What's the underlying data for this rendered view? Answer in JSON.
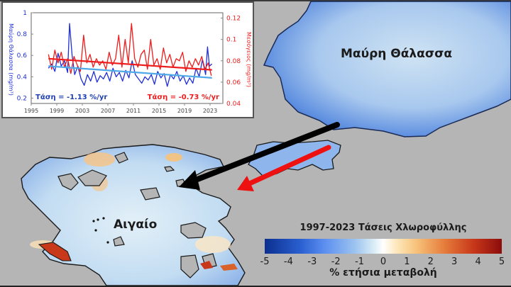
{
  "map": {
    "labels": {
      "black_sea": "Μαύρη Θάλασσα",
      "aegean": "Αιγαίο"
    },
    "arrows": [
      {
        "name": "black-arrow",
        "color": "#000000",
        "from": "Black Sea",
        "to": "Aegean"
      },
      {
        "name": "red-arrow",
        "color": "#ee1111",
        "from": "Sea of Marmara",
        "to": "south-west"
      }
    ],
    "land_color": "#b5b5b5"
  },
  "legend": {
    "title": "1997-2023 Τάσεις Χλωροφύλλης",
    "ticks": [
      "-5",
      "-4",
      "-3",
      "-2",
      "-1",
      "0",
      "1",
      "2",
      "3",
      "4",
      "5"
    ],
    "unit_label": "% ετήσια μεταβολή",
    "colors": [
      "#0b2f8f",
      "#5b8ef0",
      "#ffffff",
      "#f7c27a",
      "#8c0c0c"
    ]
  },
  "chart_data": {
    "type": "line",
    "title": "",
    "xlabel": "",
    "x_ticks": [
      "1995",
      "1999",
      "2003",
      "2007",
      "2011",
      "2015",
      "2019",
      "2023"
    ],
    "xlim": [
      1995,
      2025
    ],
    "left_axis": {
      "label": "Μαύρη Θάλασσα (mg/m³)",
      "ticks": [
        "0.2",
        "0.4",
        "0.6",
        "0.8",
        "1"
      ],
      "ylim": [
        0.15,
        1.0
      ],
      "color": "#1f2fd6"
    },
    "right_axis": {
      "label": "Μεσόγειος (mg/m³)",
      "ticks": [
        "0.04",
        "0.06",
        "0.08",
        "0.1",
        "0.12"
      ],
      "ylim": [
        0.04,
        0.125
      ],
      "color": "#ee1c1c"
    },
    "series": [
      {
        "name": "Μαύρη Θάλασσα",
        "axis": "left",
        "color": "#1f2fd6",
        "x": [
          1997.7,
          1998.2,
          1998.7,
          1999.2,
          1999.7,
          2000.2,
          2000.7,
          2001.0,
          2001.4,
          2001.8,
          2002.3,
          2002.8,
          2003.3,
          2003.8,
          2004.3,
          2004.8,
          2005.3,
          2005.8,
          2006.3,
          2006.8,
          2007.3,
          2007.8,
          2008.3,
          2008.8,
          2009.3,
          2009.8,
          2010.3,
          2010.8,
          2011.3,
          2011.8,
          2012.3,
          2012.8,
          2013.3,
          2013.8,
          2014.3,
          2014.8,
          2015.3,
          2015.8,
          2016.3,
          2016.8,
          2017.3,
          2017.8,
          2018.3,
          2018.8,
          2019.3,
          2019.8,
          2020.3,
          2020.8,
          2021.3,
          2021.8,
          2022.3,
          2022.6,
          2022.9,
          2023.3
        ],
        "values": [
          0.48,
          0.52,
          0.45,
          0.62,
          0.5,
          0.55,
          0.44,
          0.9,
          0.6,
          0.42,
          0.5,
          0.38,
          0.32,
          0.42,
          0.36,
          0.45,
          0.35,
          0.41,
          0.38,
          0.44,
          0.36,
          0.48,
          0.4,
          0.44,
          0.36,
          0.46,
          0.39,
          0.55,
          0.42,
          0.38,
          0.34,
          0.4,
          0.37,
          0.42,
          0.33,
          0.45,
          0.39,
          0.43,
          0.31,
          0.42,
          0.38,
          0.45,
          0.36,
          0.41,
          0.33,
          0.39,
          0.34,
          0.48,
          0.4,
          0.56,
          0.42,
          0.68,
          0.5,
          0.52
        ]
      },
      {
        "name": "Μεσόγειος",
        "axis": "right",
        "color": "#ee1c1c",
        "x": [
          1997.7,
          1998.2,
          1998.7,
          1999.2,
          1999.7,
          2000.2,
          2000.7,
          2001.2,
          2001.7,
          2002.2,
          2002.7,
          2003.2,
          2003.7,
          2004.2,
          2004.7,
          2005.2,
          2005.7,
          2006.2,
          2006.7,
          2007.2,
          2007.7,
          2008.2,
          2008.7,
          2009.2,
          2009.7,
          2010.2,
          2010.7,
          2011.2,
          2011.7,
          2012.2,
          2012.7,
          2013.2,
          2013.7,
          2014.2,
          2014.7,
          2015.2,
          2015.7,
          2016.2,
          2016.7,
          2017.2,
          2017.7,
          2018.2,
          2018.7,
          2019.2,
          2019.7,
          2020.2,
          2020.7,
          2021.2,
          2021.7,
          2022.2,
          2022.7,
          2023.2
        ],
        "values": [
          0.086,
          0.072,
          0.09,
          0.078,
          0.088,
          0.074,
          0.082,
          0.068,
          0.084,
          0.076,
          0.07,
          0.104,
          0.078,
          0.086,
          0.074,
          0.082,
          0.076,
          0.08,
          0.072,
          0.088,
          0.076,
          0.082,
          0.104,
          0.074,
          0.1,
          0.078,
          0.115,
          0.082,
          0.074,
          0.086,
          0.09,
          0.072,
          0.1,
          0.076,
          0.082,
          0.072,
          0.092,
          0.078,
          0.086,
          0.074,
          0.082,
          0.08,
          0.088,
          0.07,
          0.08,
          0.074,
          0.082,
          0.076,
          0.084,
          0.072,
          0.078,
          0.066
        ]
      },
      {
        "name": "Τάση Μαύρη Θάλασσα",
        "axis": "left",
        "color": "#4fa8e8",
        "x": [
          1997.7,
          2023.3
        ],
        "values": [
          0.5,
          0.39
        ]
      },
      {
        "name": "Τάση Μεσόγειος",
        "axis": "right",
        "color": "#ee1c1c",
        "x": [
          1997.7,
          2023.3
        ],
        "values": [
          0.082,
          0.0715
        ]
      }
    ],
    "annotations": [
      {
        "text": "Τάση = -1.13 %/yr",
        "color": "#2040b0",
        "position": "bottom-left"
      },
      {
        "text": "Τάση = -0.73 %/yr",
        "color": "#ee1c1c",
        "position": "bottom-right"
      }
    ],
    "grid": false,
    "legend": "none"
  }
}
